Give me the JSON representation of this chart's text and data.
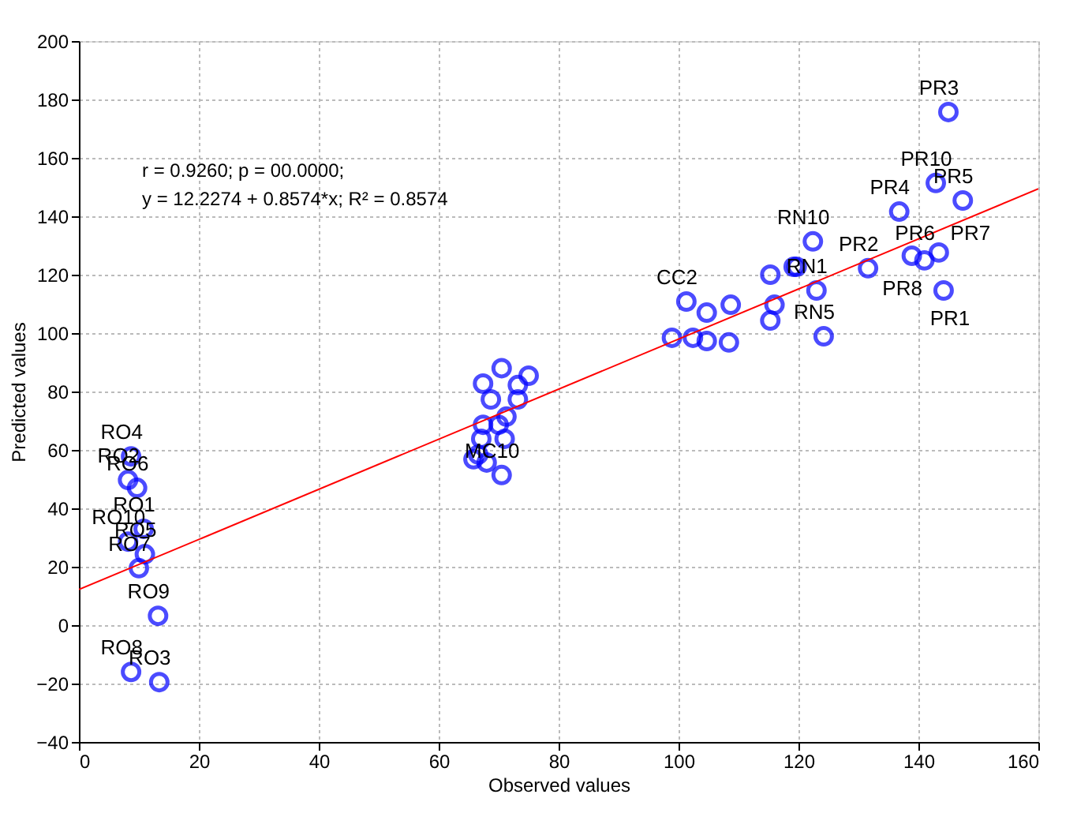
{
  "chart_data": {
    "type": "scatter",
    "xlabel": "Observed values",
    "ylabel": "Predicted values",
    "xlim": [
      0,
      160
    ],
    "xticks": [
      0,
      20,
      40,
      60,
      80,
      100,
      120,
      140,
      160
    ],
    "ylim": [
      -40,
      200
    ],
    "yticks": [
      -40,
      -20,
      0,
      20,
      40,
      60,
      80,
      100,
      120,
      140,
      160,
      180,
      200
    ],
    "grid": true,
    "marker": "circle",
    "series": [
      {
        "color": "#0000ff",
        "x": [
          8.7,
          8.2,
          9.7,
          10.8,
          8.2,
          11,
          10,
          13.2,
          8.7,
          13.4,
          70.5,
          75,
          67.4,
          73.2,
          68.7,
          73.2,
          71.3,
          67.4,
          70,
          67.1,
          71,
          65.8,
          68,
          66.6,
          70.5,
          98.9,
          102.4,
          104.7,
          108.4,
          101.3,
          104.7,
          108.7,
          119.2,
          116,
          115.3,
          124.2,
          122.4,
          119.7,
          115.3,
          123,
          145,
          142.9,
          147.4,
          136.8,
          131.6,
          138.9,
          141,
          143.4,
          144.2
        ],
        "values": [
          57.8,
          49.7,
          47,
          33,
          28.6,
          24.3,
          19.5,
          3.2,
          -16,
          -19.5,
          88,
          85.4,
          82.7,
          82.2,
          77.3,
          77.3,
          71.4,
          68.6,
          68.6,
          63.8,
          63.8,
          56.8,
          55.7,
          58.4,
          51.4,
          98.4,
          98.4,
          97.3,
          96.8,
          110.8,
          107,
          109.7,
          122.7,
          109.7,
          104.3,
          98.9,
          131.4,
          122.7,
          120,
          114.6,
          175.7,
          151.4,
          145.4,
          141.6,
          122.2,
          126.5,
          124.9,
          127.6,
          114.6
        ]
      },
      {
        "type": "line",
        "color": "#ff0000",
        "marker": "none",
        "line_style": "solid",
        "x": [
          0,
          160
        ],
        "values": [
          12.2,
          149.4
        ]
      }
    ],
    "annotations": [
      "r = 0.9260; p = 00.0000;",
      "y = 12.2274 + 0.8574*x; R² = 0.8574",
      {
        "text": "RO4",
        "x": 8.7,
        "y": 57.8
      },
      {
        "text": "RO2",
        "x": 8.2,
        "y": 49.7
      },
      {
        "text": "RO6",
        "x": 9.7,
        "y": 47
      },
      {
        "text": "RO1",
        "x": 10.8,
        "y": 33
      },
      {
        "text": "RO10",
        "x": 8.2,
        "y": 28.6
      },
      {
        "text": "RO5",
        "x": 11,
        "y": 24.3
      },
      {
        "text": "RO7",
        "x": 10,
        "y": 19.5
      },
      {
        "text": "RO9",
        "x": 13.2,
        "y": 3.2
      },
      {
        "text": "RO8",
        "x": 8.7,
        "y": -16
      },
      {
        "text": "RO3",
        "x": 13.4,
        "y": -19.5
      },
      {
        "text": "MC10",
        "x": 70.5,
        "y": 51.4
      },
      {
        "text": "CC2",
        "x": 101.3,
        "y": 110.8
      },
      {
        "text": "RN10",
        "x": 122.4,
        "y": 131.4
      },
      {
        "text": "RN1",
        "x": 123,
        "y": 114.6
      },
      {
        "text": "RN5",
        "x": 124.2,
        "y": 98.9
      },
      {
        "text": "PR3",
        "x": 145,
        "y": 175.7
      },
      {
        "text": "PR10",
        "x": 142.9,
        "y": 151.4
      },
      {
        "text": "PR5",
        "x": 147.4,
        "y": 145.4
      },
      {
        "text": "PR4",
        "x": 136.8,
        "y": 141.6
      },
      {
        "text": "PR2",
        "x": 131.6,
        "y": 122.2
      },
      {
        "text": "PR6",
        "x": 138.9,
        "y": 126.5
      },
      {
        "text": "PR8",
        "x": 141,
        "y": 124.9
      },
      {
        "text": "PR7",
        "x": 143.4,
        "y": 127.6
      },
      {
        "text": "PR1",
        "x": 144.2,
        "y": 114.6
      }
    ]
  }
}
